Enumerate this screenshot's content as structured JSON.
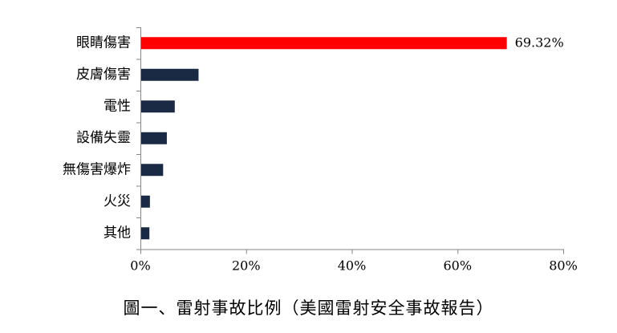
{
  "chart_data": {
    "type": "bar",
    "orientation": "horizontal",
    "categories": [
      "眼睛傷害",
      "皮膚傷害",
      "電性",
      "設備失靈",
      "無傷害爆炸",
      "火災",
      "其他"
    ],
    "values": [
      69.32,
      11,
      6.5,
      5,
      4.3,
      1.8,
      1.7
    ],
    "value_format": "percent",
    "xlim": [
      0,
      80
    ],
    "xticks": [
      0,
      20,
      40,
      60,
      80
    ],
    "xtick_labels": [
      "0%",
      "20%",
      "40%",
      "60%",
      "80%"
    ],
    "data_labels": [
      {
        "category": "眼睛傷害",
        "text": "69.32%"
      }
    ],
    "grid": false,
    "legend": "none",
    "colors": {
      "highlight": "#ff0000",
      "bar": "#1b2a44",
      "axis": "#868686"
    }
  },
  "caption": "圖一、雷射事故比例（美國雷射安全事故報告）"
}
